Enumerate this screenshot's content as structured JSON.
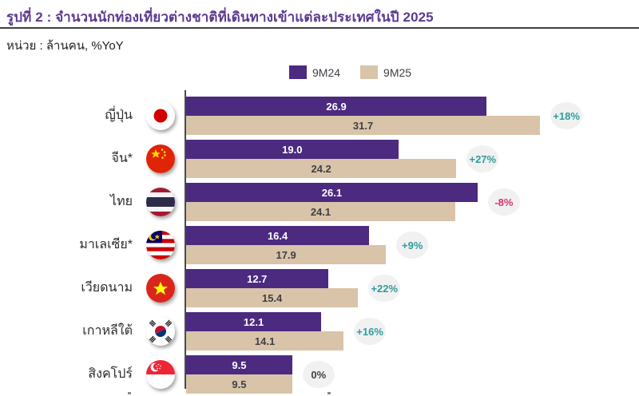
{
  "palette": {
    "title": "#5B3A8F",
    "bar_9m24": "#4C2A80",
    "bar_9m25": "#D9C4A9",
    "badge_bg": "#F1F1F1",
    "yoy_up": "#2E9D9C",
    "yoy_down": "#D6336C",
    "yoy_flat": "#3F3F46"
  },
  "chart_data": {
    "type": "bar",
    "orientation": "horizontal",
    "title": "รูปที่ 2 : จำนวนนักท่องเที่ยวต่างชาติที่เดินทางเข้าแต่ละประเทศในปี 2025",
    "unit_label": "หน่วย : ล้านคน, %YoY",
    "legend": [
      "9M24",
      "9M25"
    ],
    "legend_position": "top-center",
    "grid": false,
    "xlim": [
      0,
      40.63
    ],
    "categories": [
      "ญี่ปุ่น",
      "จีน*",
      "ไทย",
      "มาเลเซีย*",
      "เวียดนาม",
      "เกาหลีใต้",
      "สิงคโปร์"
    ],
    "series": [
      {
        "name": "9M24",
        "values": [
          26.9,
          19.0,
          26.1,
          16.4,
          12.7,
          12.1,
          9.5
        ]
      },
      {
        "name": "9M25",
        "values": [
          31.7,
          24.2,
          24.1,
          17.9,
          15.4,
          14.1,
          9.5
        ]
      }
    ],
    "rows": [
      {
        "country": "ญี่ปุ่น",
        "flag": "japan",
        "v_9m24": "26.9",
        "v_9m25": "31.7",
        "yoy": "+18%",
        "trend": "up"
      },
      {
        "country": "จีน*",
        "flag": "china",
        "v_9m24": "19.0",
        "v_9m25": "24.2",
        "yoy": "+27%",
        "trend": "up"
      },
      {
        "country": "ไทย",
        "flag": "thailand",
        "v_9m24": "26.1",
        "v_9m25": "24.1",
        "yoy": "-8%",
        "trend": "down"
      },
      {
        "country": "มาเลเซีย*",
        "flag": "malaysia",
        "v_9m24": "16.4",
        "v_9m25": "17.9",
        "yoy": "+9%",
        "trend": "up"
      },
      {
        "country": "เวียดนาม",
        "flag": "vietnam",
        "v_9m24": "12.7",
        "v_9m25": "15.4",
        "yoy": "+22%",
        "trend": "up"
      },
      {
        "country": "เกาหลีใต้",
        "flag": "south-korea",
        "v_9m24": "12.1",
        "v_9m25": "14.1",
        "yoy": "+16%",
        "trend": "up"
      },
      {
        "country": "สิงคโปร์",
        "flag": "singapore",
        "v_9m24": "9.5",
        "v_9m25": "9.5",
        "yoy": "0%",
        "trend": "flat"
      }
    ]
  }
}
